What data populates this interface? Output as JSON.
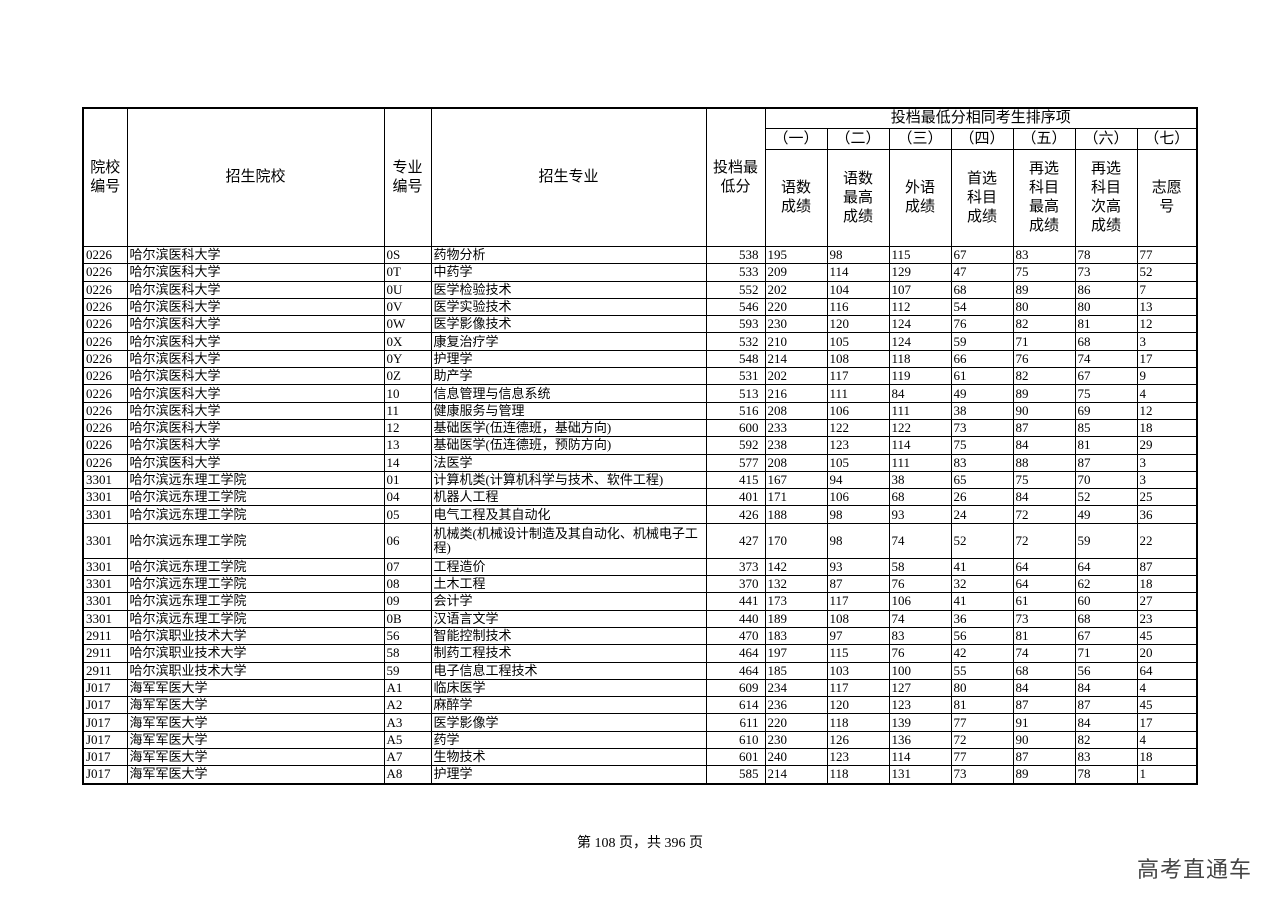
{
  "header": {
    "school_code": "院校编号",
    "school": "招生院校",
    "major_code": "专业编号",
    "major": "招生专业",
    "min_score": "投档最低分",
    "tie_group": "投档最低分相同考生排序项",
    "tie_numbers": [
      "（一）",
      "（二）",
      "（三）",
      "（四）",
      "（五）",
      "（六）",
      "（七）"
    ],
    "tie_labels": [
      "语数成绩",
      "语数最高成绩",
      "外语成绩",
      "首选科目成绩",
      "再选科目最高成绩",
      "再选科目次高成绩",
      "志愿号"
    ]
  },
  "rows": [
    [
      "0226",
      "哈尔滨医科大学",
      "0S",
      "药物分析",
      "538",
      "195",
      "98",
      "115",
      "67",
      "83",
      "78",
      "77"
    ],
    [
      "0226",
      "哈尔滨医科大学",
      "0T",
      "中药学",
      "533",
      "209",
      "114",
      "129",
      "47",
      "75",
      "73",
      "52"
    ],
    [
      "0226",
      "哈尔滨医科大学",
      "0U",
      "医学检验技术",
      "552",
      "202",
      "104",
      "107",
      "68",
      "89",
      "86",
      "7"
    ],
    [
      "0226",
      "哈尔滨医科大学",
      "0V",
      "医学实验技术",
      "546",
      "220",
      "116",
      "112",
      "54",
      "80",
      "80",
      "13"
    ],
    [
      "0226",
      "哈尔滨医科大学",
      "0W",
      "医学影像技术",
      "593",
      "230",
      "120",
      "124",
      "76",
      "82",
      "81",
      "12"
    ],
    [
      "0226",
      "哈尔滨医科大学",
      "0X",
      "康复治疗学",
      "532",
      "210",
      "105",
      "124",
      "59",
      "71",
      "68",
      "3"
    ],
    [
      "0226",
      "哈尔滨医科大学",
      "0Y",
      "护理学",
      "548",
      "214",
      "108",
      "118",
      "66",
      "76",
      "74",
      "17"
    ],
    [
      "0226",
      "哈尔滨医科大学",
      "0Z",
      "助产学",
      "531",
      "202",
      "117",
      "119",
      "61",
      "82",
      "67",
      "9"
    ],
    [
      "0226",
      "哈尔滨医科大学",
      "10",
      "信息管理与信息系统",
      "513",
      "216",
      "111",
      "84",
      "49",
      "89",
      "75",
      "4"
    ],
    [
      "0226",
      "哈尔滨医科大学",
      "11",
      "健康服务与管理",
      "516",
      "208",
      "106",
      "111",
      "38",
      "90",
      "69",
      "12"
    ],
    [
      "0226",
      "哈尔滨医科大学",
      "12",
      "基础医学(伍连德班，基础方向)",
      "600",
      "233",
      "122",
      "122",
      "73",
      "87",
      "85",
      "18"
    ],
    [
      "0226",
      "哈尔滨医科大学",
      "13",
      "基础医学(伍连德班，预防方向)",
      "592",
      "238",
      "123",
      "114",
      "75",
      "84",
      "81",
      "29"
    ],
    [
      "0226",
      "哈尔滨医科大学",
      "14",
      "法医学",
      "577",
      "208",
      "105",
      "111",
      "83",
      "88",
      "87",
      "3"
    ],
    [
      "3301",
      "哈尔滨远东理工学院",
      "01",
      "计算机类(计算机科学与技术、软件工程)",
      "415",
      "167",
      "94",
      "38",
      "65",
      "75",
      "70",
      "3"
    ],
    [
      "3301",
      "哈尔滨远东理工学院",
      "04",
      "机器人工程",
      "401",
      "171",
      "106",
      "68",
      "26",
      "84",
      "52",
      "25"
    ],
    [
      "3301",
      "哈尔滨远东理工学院",
      "05",
      "电气工程及其自动化",
      "426",
      "188",
      "98",
      "93",
      "24",
      "72",
      "49",
      "36"
    ],
    [
      "3301",
      "哈尔滨远东理工学院",
      "06",
      "机械类(机械设计制造及其自动化、机械电子工程)",
      "427",
      "170",
      "98",
      "74",
      "52",
      "72",
      "59",
      "22"
    ],
    [
      "3301",
      "哈尔滨远东理工学院",
      "07",
      "工程造价",
      "373",
      "142",
      "93",
      "58",
      "41",
      "64",
      "64",
      "87"
    ],
    [
      "3301",
      "哈尔滨远东理工学院",
      "08",
      "土木工程",
      "370",
      "132",
      "87",
      "76",
      "32",
      "64",
      "62",
      "18"
    ],
    [
      "3301",
      "哈尔滨远东理工学院",
      "09",
      "会计学",
      "441",
      "173",
      "117",
      "106",
      "41",
      "61",
      "60",
      "27"
    ],
    [
      "3301",
      "哈尔滨远东理工学院",
      "0B",
      "汉语言文学",
      "440",
      "189",
      "108",
      "74",
      "36",
      "73",
      "68",
      "23"
    ],
    [
      "2911",
      "哈尔滨职业技术大学",
      "56",
      "智能控制技术",
      "470",
      "183",
      "97",
      "83",
      "56",
      "81",
      "67",
      "45"
    ],
    [
      "2911",
      "哈尔滨职业技术大学",
      "58",
      "制药工程技术",
      "464",
      "197",
      "115",
      "76",
      "42",
      "74",
      "71",
      "20"
    ],
    [
      "2911",
      "哈尔滨职业技术大学",
      "59",
      "电子信息工程技术",
      "464",
      "185",
      "103",
      "100",
      "55",
      "68",
      "56",
      "64"
    ],
    [
      "J017",
      "海军军医大学",
      "A1",
      "临床医学",
      "609",
      "234",
      "117",
      "127",
      "80",
      "84",
      "84",
      "4"
    ],
    [
      "J017",
      "海军军医大学",
      "A2",
      "麻醉学",
      "614",
      "236",
      "120",
      "123",
      "81",
      "87",
      "87",
      "45"
    ],
    [
      "J017",
      "海军军医大学",
      "A3",
      "医学影像学",
      "611",
      "220",
      "118",
      "139",
      "77",
      "91",
      "84",
      "17"
    ],
    [
      "J017",
      "海军军医大学",
      "A5",
      "药学",
      "610",
      "230",
      "126",
      "136",
      "72",
      "90",
      "82",
      "4"
    ],
    [
      "J017",
      "海军军医大学",
      "A7",
      "生物技术",
      "601",
      "240",
      "123",
      "114",
      "77",
      "87",
      "83",
      "18"
    ],
    [
      "J017",
      "海军军医大学",
      "A8",
      "护理学",
      "585",
      "214",
      "118",
      "131",
      "73",
      "89",
      "78",
      "1"
    ]
  ],
  "footer": {
    "page_text": "第 108 页，共 396 页"
  },
  "watermark": "高考直通车"
}
